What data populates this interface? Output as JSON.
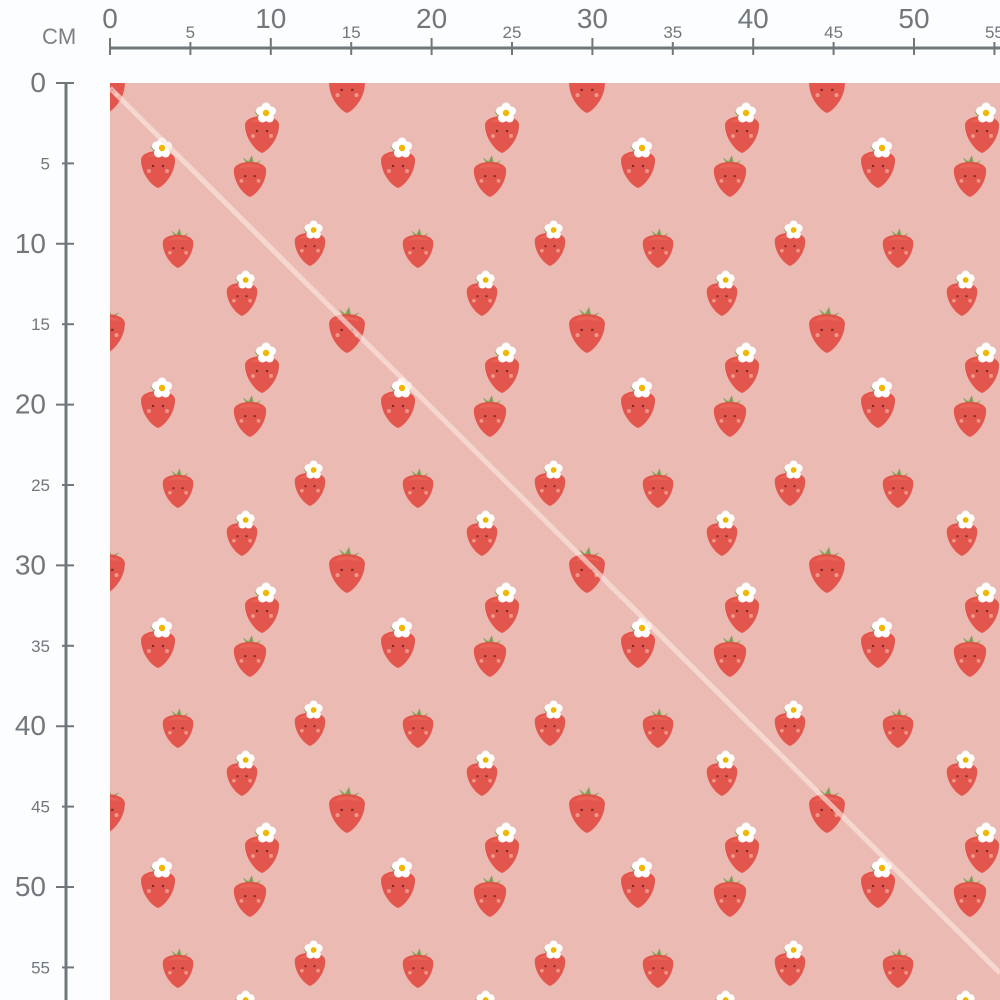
{
  "ruler": {
    "unit": "CM",
    "horizontal_labels": [
      "0",
      "5",
      "10",
      "15",
      "20",
      "25",
      "30",
      "35",
      "40",
      "45",
      "50",
      "55"
    ],
    "vertical_labels": [
      "0",
      "5",
      "10",
      "15",
      "20",
      "25",
      "30",
      "35",
      "40",
      "45",
      "50",
      "55"
    ],
    "color": "#6f767c"
  },
  "fabric": {
    "pattern": "strawberries",
    "repeat_cm": 15,
    "background_color": "#ebbbb3",
    "strawberry_color": "#e24d45",
    "flower_color": "#ffffff",
    "flower_center_color": "#f2b600",
    "leaf_color": "#7aa356"
  }
}
